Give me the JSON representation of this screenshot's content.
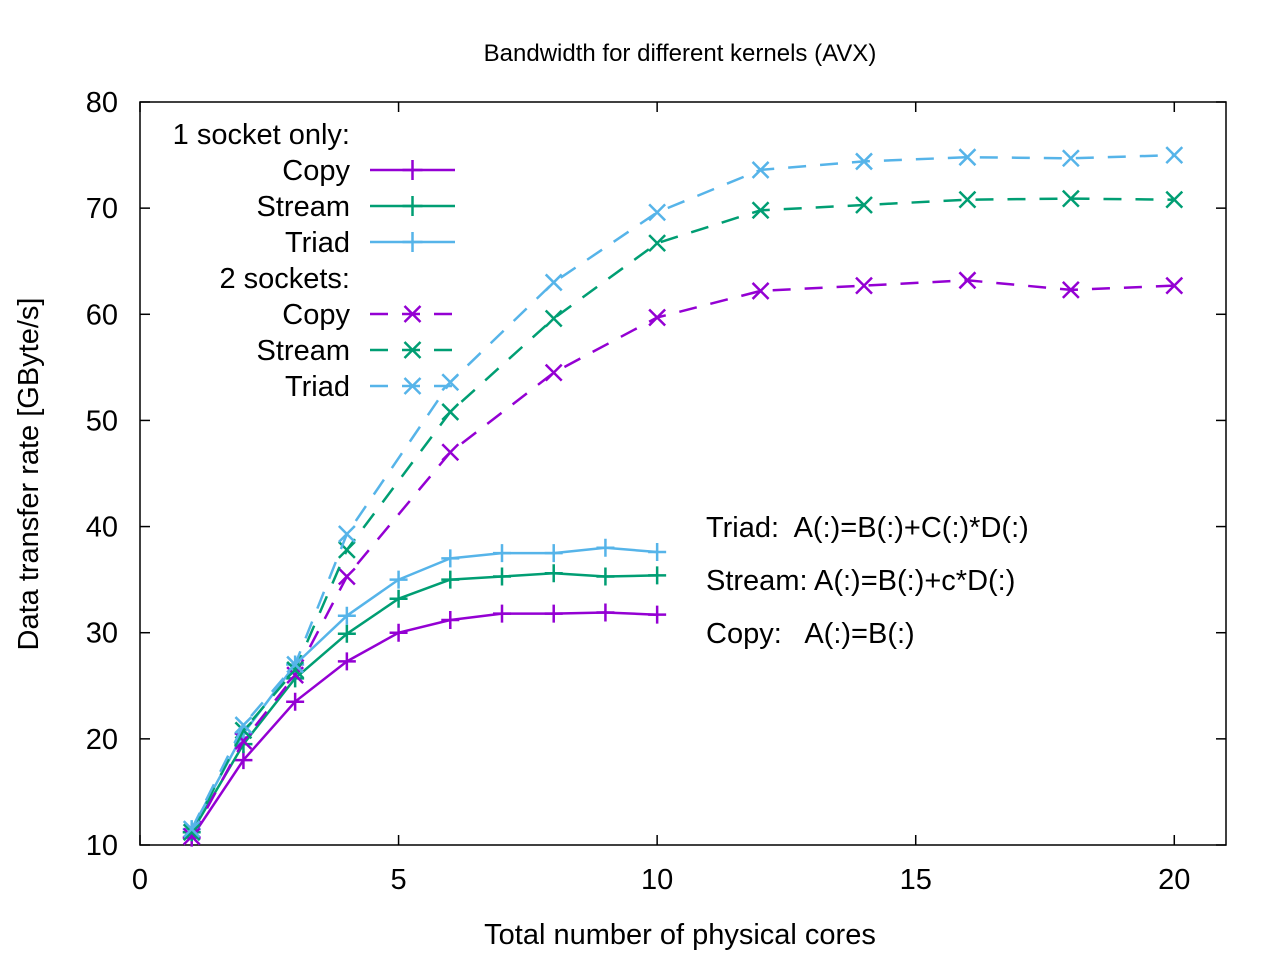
{
  "chart_data": {
    "type": "line",
    "title": "Bandwidth for different kernels (AVX)",
    "xlabel": "Total number of physical cores",
    "ylabel": "Data transfer rate [GByte/s]",
    "xlim": [
      0,
      21
    ],
    "ylim": [
      10,
      80
    ],
    "xticks": [
      0,
      5,
      10,
      15,
      20
    ],
    "yticks": [
      10,
      20,
      30,
      40,
      50,
      60,
      70,
      80
    ],
    "grid": false,
    "legend_position": "top-left",
    "legend_groups": [
      {
        "heading": "1 socket only:",
        "style": "solid",
        "marker": "plus",
        "entries": [
          "Copy",
          "Stream",
          "Triad"
        ]
      },
      {
        "heading": "2 sockets:",
        "style": "dashed",
        "marker": "cross",
        "entries": [
          "Copy",
          "Stream",
          "Triad"
        ]
      }
    ],
    "annotations": [
      "Triad:  A(:)=B(:)+C(:)*D(:)",
      "Stream: A(:)=B(:)+c*D(:)",
      "Copy:   A(:)=B(:)"
    ],
    "colors": {
      "copy": "#9400d3",
      "stream": "#009e73",
      "triad": "#56b4e9"
    },
    "series": [
      {
        "name": "Copy",
        "group": "1 socket only:",
        "color": "#9400d3",
        "style": "solid",
        "marker": "plus",
        "x": [
          1,
          2,
          3,
          4,
          5,
          6,
          7,
          8,
          9,
          10
        ],
        "y": [
          10.7,
          18.0,
          23.5,
          27.3,
          30.0,
          31.2,
          31.8,
          31.8,
          31.9,
          31.7
        ]
      },
      {
        "name": "Stream",
        "group": "1 socket only:",
        "color": "#009e73",
        "style": "solid",
        "marker": "plus",
        "x": [
          1,
          2,
          3,
          4,
          5,
          6,
          7,
          8,
          9,
          10
        ],
        "y": [
          11.2,
          19.5,
          25.7,
          29.9,
          33.2,
          35.0,
          35.3,
          35.6,
          35.3,
          35.4
        ]
      },
      {
        "name": "Triad",
        "group": "1 socket only:",
        "color": "#56b4e9",
        "style": "solid",
        "marker": "plus",
        "x": [
          1,
          2,
          3,
          4,
          5,
          6,
          7,
          8,
          9,
          10
        ],
        "y": [
          11.5,
          20.5,
          27.0,
          31.6,
          35.0,
          37.0,
          37.5,
          37.5,
          38.0,
          37.6
        ]
      },
      {
        "name": "Copy",
        "group": "2 sockets:",
        "color": "#9400d3",
        "style": "dashed",
        "marker": "cross",
        "x": [
          1,
          2,
          3,
          4,
          6,
          8,
          10,
          12,
          14,
          16,
          18,
          20
        ],
        "y": [
          10.8,
          19.8,
          26.0,
          35.3,
          47.0,
          54.5,
          59.7,
          62.2,
          62.7,
          63.2,
          62.3,
          62.7
        ]
      },
      {
        "name": "Stream",
        "group": "2 sockets:",
        "color": "#009e73",
        "style": "dashed",
        "marker": "cross",
        "x": [
          1,
          2,
          3,
          4,
          6,
          8,
          10,
          12,
          14,
          16,
          18,
          20
        ],
        "y": [
          11.2,
          20.8,
          26.5,
          37.8,
          50.8,
          59.6,
          66.7,
          69.8,
          70.3,
          70.8,
          70.9,
          70.8
        ]
      },
      {
        "name": "Triad",
        "group": "2 sockets:",
        "color": "#56b4e9",
        "style": "dashed",
        "marker": "cross",
        "x": [
          1,
          2,
          3,
          4,
          6,
          8,
          10,
          12,
          14,
          16,
          18,
          20
        ],
        "y": [
          11.5,
          21.3,
          27.0,
          39.3,
          53.6,
          63.0,
          69.6,
          73.6,
          74.4,
          74.8,
          74.7,
          75.0
        ]
      }
    ]
  }
}
